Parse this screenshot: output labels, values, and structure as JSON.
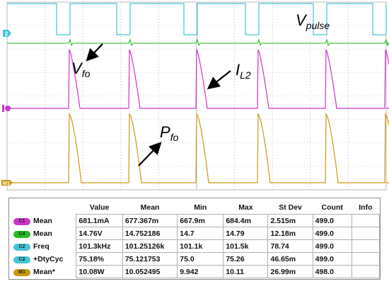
{
  "colors": {
    "c1": "#cc33cc",
    "c2": "#44c5d6",
    "c4": "#22bb22",
    "m1": "#c89a10",
    "grid": "#b8b8b8",
    "grid_minor": "#d4d4d4"
  },
  "channel_markers": {
    "c2": "2",
    "m1": "M1"
  },
  "labels": {
    "vpulse": {
      "main": "V",
      "sub": "pulse"
    },
    "vfo": {
      "main": "V",
      "sub": "fo"
    },
    "il2": {
      "main": "I",
      "sub": "L2"
    },
    "pfo": {
      "main": "P",
      "sub": "fo"
    }
  },
  "measurements": {
    "headers": [
      "",
      "",
      "Value",
      "Mean",
      "Min",
      "Max",
      "St Dev",
      "Count",
      "Info"
    ],
    "rows": [
      {
        "chan": "C1",
        "color": "#cc33cc",
        "name": "Mean",
        "value": "681.1mA",
        "mean": "677.367m",
        "min": "667.9m",
        "max": "684.4m",
        "stdev": "2.515m",
        "count": "499.0",
        "info": ""
      },
      {
        "chan": "C4",
        "color": "#22bb22",
        "name": "Mean",
        "value": "14.76V",
        "mean": "14.752186",
        "min": "14.7",
        "max": "14.79",
        "stdev": "12.18m",
        "count": "499.0",
        "info": ""
      },
      {
        "chan": "C2",
        "color": "#44c5d6",
        "name": "Freq",
        "value": "101.3kHz",
        "mean": "101.25126k",
        "min": "101.1k",
        "max": "101.5k",
        "stdev": "78.74",
        "count": "499.0",
        "info": ""
      },
      {
        "chan": "C2",
        "color": "#44c5d6",
        "name": "+DtyCyc",
        "value": "75.18%",
        "mean": "75.121753",
        "min": "75.0",
        "max": "75.26",
        "stdev": "46.65m",
        "count": "499.0",
        "info": ""
      },
      {
        "chan": "M1",
        "color": "#c89a10",
        "name": "Mean*",
        "value": "10.08W",
        "mean": "10.052495",
        "min": "9.942",
        "max": "10.11",
        "stdev": "26.99m",
        "count": "498.0",
        "info": ""
      }
    ]
  }
}
